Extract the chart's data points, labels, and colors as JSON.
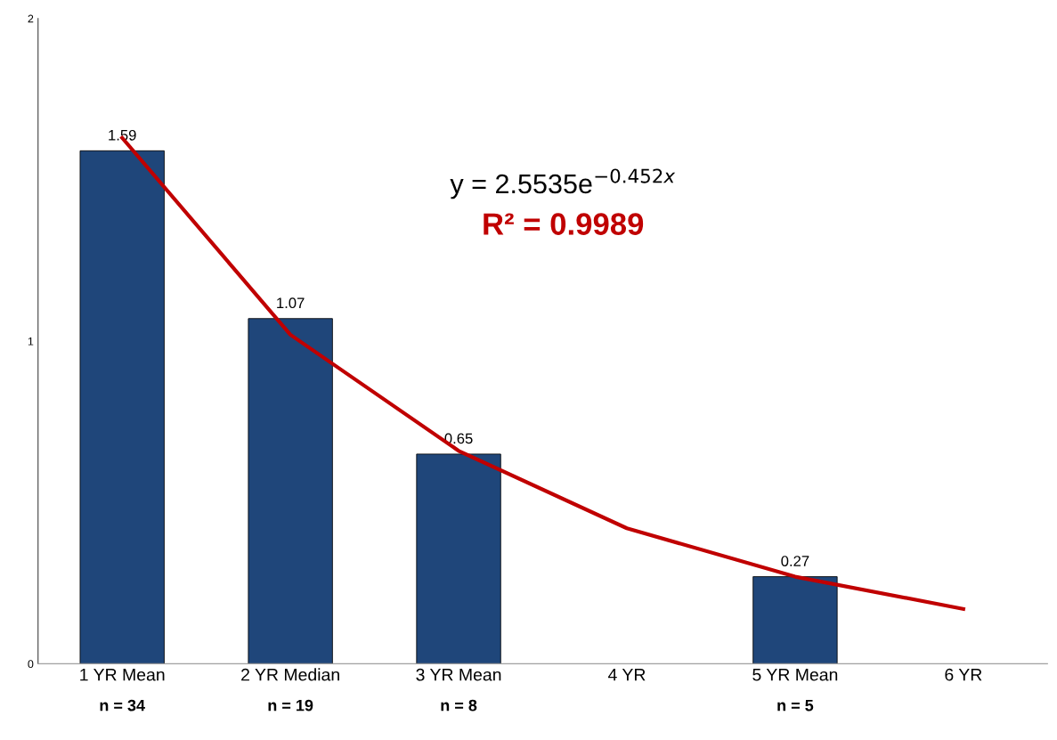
{
  "chart_data": {
    "type": "bar",
    "categories": [
      "1 YR Mean\nn = 34",
      "2 YR Median\nn = 19",
      "3 YR Mean\nn = 8",
      "4 YR",
      "5 YR Mean\nn = 5",
      "6 YR"
    ],
    "series": [
      {
        "color": "#1f467a",
        "values": [
          1.59,
          1.07,
          0.65,
          null,
          0.27,
          null
        ],
        "value_labels": [
          "1.59",
          "1.07",
          "0.65",
          null,
          "0.27",
          null
        ]
      },
      {
        "type": "line",
        "color": "#c00000",
        "values": [
          1.63,
          1.02,
          0.66,
          0.42,
          0.27,
          0.17
        ]
      }
    ],
    "ylim": [
      0,
      2
    ],
    "yticks": [
      0,
      1,
      2
    ],
    "grid": false,
    "annotations": [
      "y = 2.5535e$^{−0.452x}$",
      "R² = 0.9989"
    ]
  }
}
